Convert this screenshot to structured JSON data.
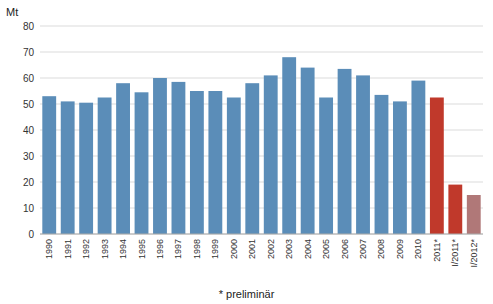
{
  "chart_data": {
    "type": "bar",
    "ylabel": "Mt",
    "annotations": [
      "* preliminär"
    ],
    "categories": [
      "1990",
      "1991",
      "1992",
      "1993",
      "1994",
      "1995",
      "1996",
      "1997",
      "1998",
      "1999",
      "2000",
      "2001",
      "2002",
      "2003",
      "2004",
      "2005",
      "2006",
      "2007",
      "2008",
      "2009",
      "2010",
      "2011*",
      "I/2011*",
      "I/2012*"
    ],
    "values": [
      53,
      51,
      50.5,
      52.5,
      58,
      54.5,
      60,
      58.5,
      55,
      55,
      52.5,
      58,
      61,
      68,
      64,
      52.5,
      63.5,
      61,
      53.5,
      51,
      59,
      52.5,
      19,
      15
    ],
    "colors": [
      "#5b8db8",
      "#5b8db8",
      "#5b8db8",
      "#5b8db8",
      "#5b8db8",
      "#5b8db8",
      "#5b8db8",
      "#5b8db8",
      "#5b8db8",
      "#5b8db8",
      "#5b8db8",
      "#5b8db8",
      "#5b8db8",
      "#5b8db8",
      "#5b8db8",
      "#5b8db8",
      "#5b8db8",
      "#5b8db8",
      "#5b8db8",
      "#5b8db8",
      "#5b8db8",
      "#c0392b",
      "#c0392b",
      "#b07878"
    ],
    "ylim": [
      0,
      80
    ],
    "yticks": [
      0,
      10,
      20,
      30,
      40,
      50,
      60,
      70,
      80
    ],
    "grid": true
  }
}
